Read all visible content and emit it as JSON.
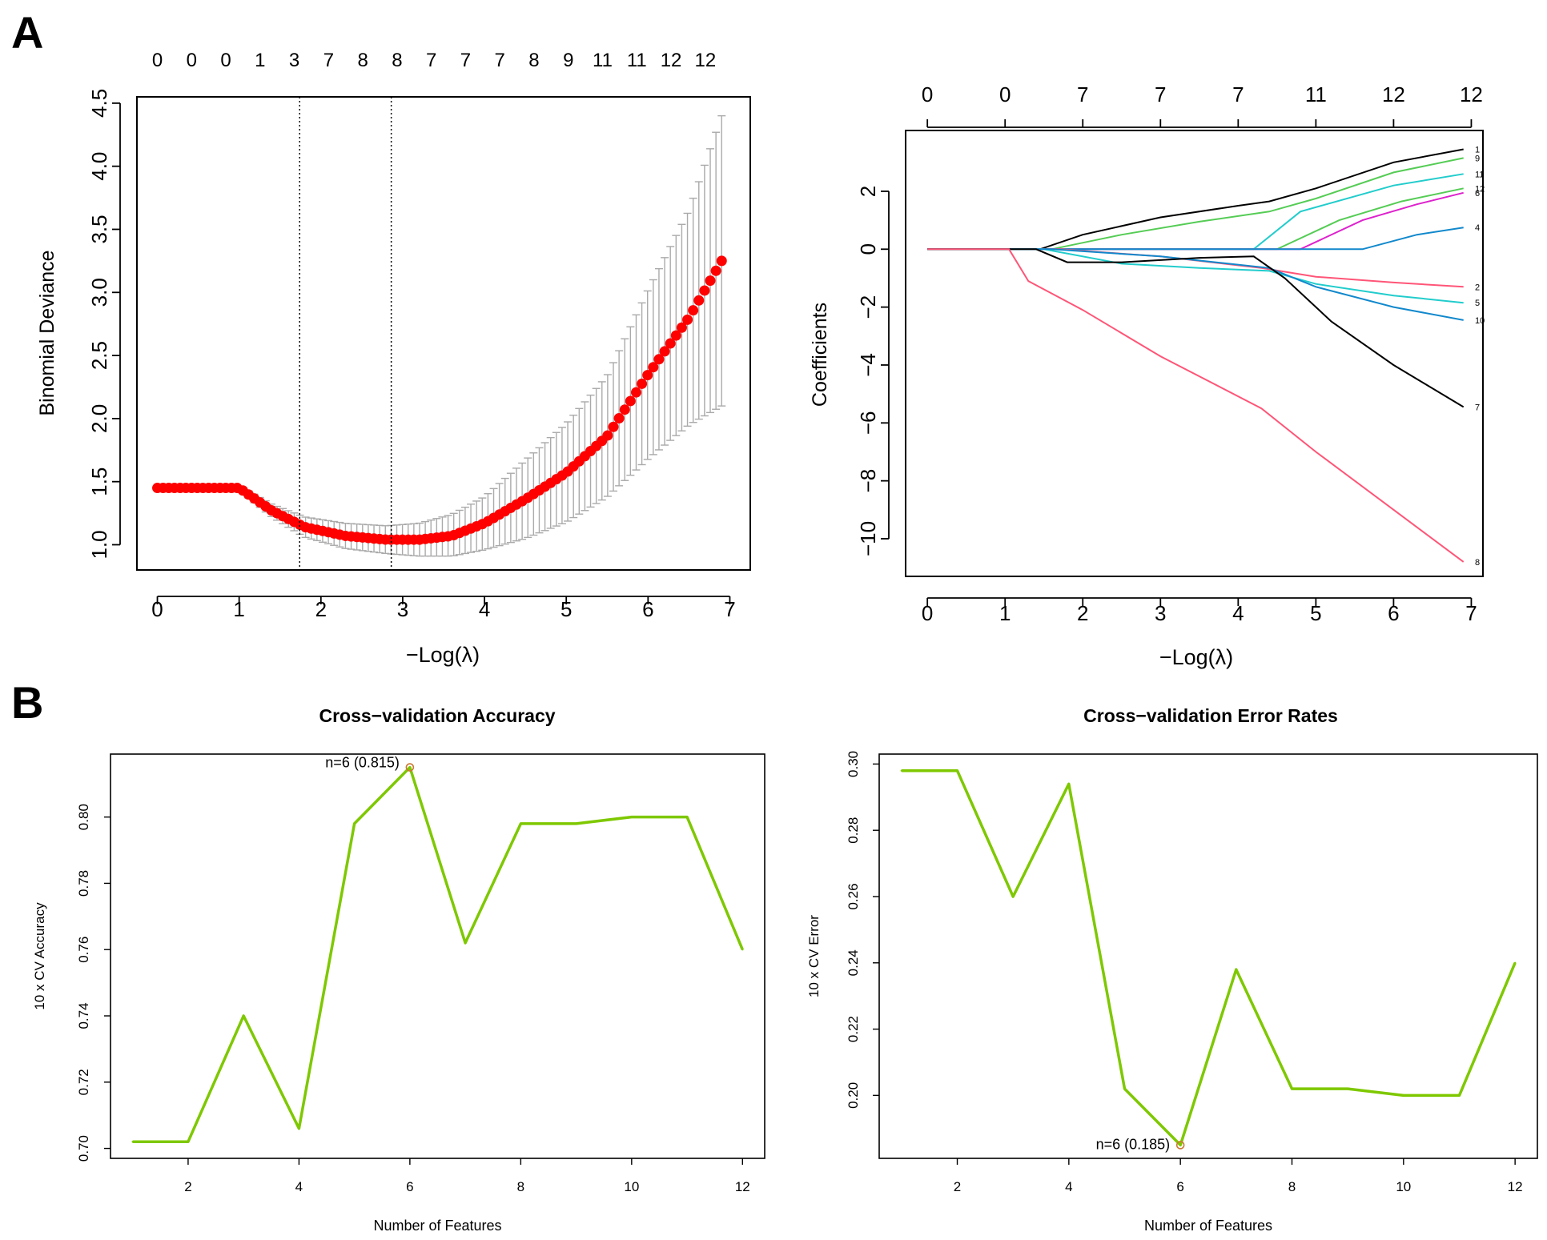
{
  "panel_labels": [
    "A",
    "B"
  ],
  "chart_data": [
    {
      "id": "cv_deviance",
      "type": "scatter",
      "title": "",
      "xlabel": "−Log(λ)",
      "ylabel": "Binomial Deviance",
      "xlim": [
        -0.25,
        7.25
      ],
      "ylim": [
        0.8,
        4.55
      ],
      "x_ticks": [
        "0",
        "1",
        "2",
        "3",
        "4",
        "5",
        "6",
        "7"
      ],
      "y_ticks": [
        "1.0",
        "1.5",
        "2.0",
        "2.5",
        "3.0",
        "3.5",
        "4.0",
        "4.5"
      ],
      "top_ticks": [
        "0",
        "0",
        "0",
        "1",
        "3",
        "7",
        "8",
        "8",
        "7",
        "7",
        "7",
        "8",
        "9",
        "11",
        "11",
        "12",
        "12"
      ],
      "lambda_min": 1.74,
      "lambda_1se": 2.86,
      "curve_keypoints": [
        [
          0,
          1.45
        ],
        [
          1.0,
          1.45
        ],
        [
          1.4,
          1.27
        ],
        [
          1.8,
          1.14
        ],
        [
          2.3,
          1.07
        ],
        [
          2.8,
          1.04
        ],
        [
          3.2,
          1.04
        ],
        [
          3.6,
          1.07
        ],
        [
          4.0,
          1.17
        ],
        [
          4.5,
          1.36
        ],
        [
          5.0,
          1.57
        ],
        [
          5.5,
          1.86
        ],
        [
          6.0,
          2.35
        ],
        [
          6.5,
          2.8
        ],
        [
          6.9,
          3.25
        ]
      ],
      "err_low_keypoints": [
        [
          0,
          1.44
        ],
        [
          1.0,
          1.43
        ],
        [
          1.4,
          1.22
        ],
        [
          1.8,
          1.06
        ],
        [
          2.3,
          0.97
        ],
        [
          2.8,
          0.93
        ],
        [
          3.2,
          0.91
        ],
        [
          3.6,
          0.91
        ],
        [
          4.0,
          0.96
        ],
        [
          4.5,
          1.05
        ],
        [
          5.0,
          1.18
        ],
        [
          5.5,
          1.38
        ],
        [
          6.0,
          1.68
        ],
        [
          6.5,
          1.95
        ],
        [
          6.9,
          2.1
        ]
      ],
      "err_high_keypoints": [
        [
          0,
          1.46
        ],
        [
          1.0,
          1.47
        ],
        [
          1.4,
          1.32
        ],
        [
          1.8,
          1.22
        ],
        [
          2.3,
          1.17
        ],
        [
          2.8,
          1.15
        ],
        [
          3.2,
          1.17
        ],
        [
          3.6,
          1.24
        ],
        [
          4.0,
          1.38
        ],
        [
          4.5,
          1.67
        ],
        [
          5.0,
          1.96
        ],
        [
          5.5,
          2.34
        ],
        [
          6.0,
          3.02
        ],
        [
          6.5,
          3.65
        ],
        [
          6.9,
          4.4
        ]
      ],
      "colors": {
        "curve": "#ff0000",
        "error_bars": "#aaaaaa"
      }
    },
    {
      "id": "coef_path",
      "type": "line",
      "title": "",
      "xlabel": "−Log(λ)",
      "ylabel": "Coefficients",
      "xlim": [
        -0.28,
        7.15
      ],
      "ylim": [
        -11.3,
        4.1
      ],
      "x_ticks": [
        "0",
        "1",
        "2",
        "3",
        "4",
        "5",
        "6",
        "7"
      ],
      "y_ticks": [
        "−10",
        "−8",
        "−6",
        "−4",
        "−2",
        "0",
        "2"
      ],
      "top_ticks": [
        "0",
        "0",
        "7",
        "7",
        "7",
        "11",
        "12",
        "12"
      ],
      "series": [
        {
          "name": "1",
          "color": "#000000",
          "points": [
            [
              0,
              0
            ],
            [
              1.45,
              0
            ],
            [
              2,
              0.5
            ],
            [
              3,
              1.1
            ],
            [
              4,
              1.5
            ],
            [
              4.4,
              1.65
            ],
            [
              5,
              2.1
            ],
            [
              6,
              3.0
            ],
            [
              6.9,
              3.45
            ]
          ]
        },
        {
          "name": "9",
          "color": "#55cc55",
          "points": [
            [
              0,
              0
            ],
            [
              1.6,
              0
            ],
            [
              2.5,
              0.5
            ],
            [
              3.5,
              0.95
            ],
            [
              4.4,
              1.3
            ],
            [
              5,
              1.75
            ],
            [
              6,
              2.65
            ],
            [
              6.9,
              3.15
            ]
          ]
        },
        {
          "name": "11",
          "color": "#22cccc",
          "points": [
            [
              0,
              0
            ],
            [
              4.2,
              0
            ],
            [
              4.8,
              1.3
            ],
            [
              6,
              2.2
            ],
            [
              6.9,
              2.6
            ]
          ]
        },
        {
          "name": "12",
          "color": "#55cc55",
          "points": [
            [
              0,
              0
            ],
            [
              4.5,
              0
            ],
            [
              5.3,
              1.0
            ],
            [
              6.1,
              1.65
            ],
            [
              6.9,
              2.1
            ]
          ]
        },
        {
          "name": "6",
          "color": "#dd22cc",
          "points": [
            [
              0,
              0
            ],
            [
              4.8,
              0
            ],
            [
              5.6,
              1.0
            ],
            [
              6.3,
              1.55
            ],
            [
              6.9,
              1.95
            ]
          ]
        },
        {
          "name": "4",
          "color": "#1188cc",
          "points": [
            [
              0,
              0
            ],
            [
              5.6,
              0
            ],
            [
              6.3,
              0.5
            ],
            [
              6.9,
              0.75
            ]
          ]
        },
        {
          "name": "2",
          "color": "#ff5577",
          "points": [
            [
              0,
              0
            ],
            [
              1.7,
              0
            ],
            [
              3,
              -0.25
            ],
            [
              4.3,
              -0.65
            ],
            [
              5,
              -0.95
            ],
            [
              6,
              -1.15
            ],
            [
              6.9,
              -1.3
            ]
          ]
        },
        {
          "name": "5",
          "color": "#22cccc",
          "points": [
            [
              0,
              0
            ],
            [
              1.5,
              0
            ],
            [
              2.5,
              -0.5
            ],
            [
              3.5,
              -0.65
            ],
            [
              4.4,
              -0.75
            ],
            [
              5,
              -1.2
            ],
            [
              6,
              -1.6
            ],
            [
              6.9,
              -1.85
            ]
          ]
        },
        {
          "name": "10",
          "color": "#1188cc",
          "points": [
            [
              0,
              0
            ],
            [
              1.6,
              0
            ],
            [
              3,
              -0.25
            ],
            [
              4.4,
              -0.65
            ],
            [
              5,
              -1.3
            ],
            [
              6,
              -2.0
            ],
            [
              6.9,
              -2.45
            ]
          ]
        },
        {
          "name": "7",
          "color": "#000000",
          "points": [
            [
              0,
              0
            ],
            [
              1.4,
              0
            ],
            [
              1.8,
              -0.45
            ],
            [
              2.5,
              -0.45
            ],
            [
              3.5,
              -0.3
            ],
            [
              4.2,
              -0.25
            ],
            [
              4.6,
              -1.0
            ],
            [
              5.2,
              -2.5
            ],
            [
              6,
              -4.0
            ],
            [
              6.9,
              -5.45
            ]
          ]
        },
        {
          "name": "8",
          "color": "#ff5577",
          "points": [
            [
              0,
              0
            ],
            [
              1.05,
              0
            ],
            [
              1.3,
              -1.1
            ],
            [
              2,
              -2.1
            ],
            [
              3,
              -3.7
            ],
            [
              4.3,
              -5.5
            ],
            [
              5,
              -7.0
            ],
            [
              6,
              -9.0
            ],
            [
              6.9,
              -10.8
            ]
          ]
        }
      ]
    },
    {
      "id": "cv_accuracy",
      "type": "line",
      "title": "Cross−validation Accuracy",
      "xlabel": "Number of Features",
      "ylabel": "10 x CV Accuracy",
      "xlim": [
        0.6,
        12.4
      ],
      "ylim": [
        0.697,
        0.819
      ],
      "x_ticks": [
        2,
        4,
        6,
        8,
        10,
        12
      ],
      "y_ticks": [
        "0.70",
        "0.72",
        "0.74",
        "0.76",
        "0.78",
        "0.80"
      ],
      "x": [
        1,
        2,
        3,
        4,
        5,
        6,
        7,
        8,
        9,
        10,
        11,
        12
      ],
      "values": [
        0.702,
        0.702,
        0.74,
        0.706,
        0.798,
        0.815,
        0.762,
        0.798,
        0.798,
        0.8,
        0.8,
        0.76
      ],
      "annotation": {
        "text": "n=6 (0.815)",
        "x": 6,
        "y": 0.815
      },
      "colors": {
        "line": "#7ec800",
        "annotation": "#ff0000"
      }
    },
    {
      "id": "cv_error",
      "type": "line",
      "title": "Cross−validation Error Rates",
      "xlabel": "Number of Features",
      "ylabel": "10 x CV Error",
      "xlim": [
        0.6,
        12.4
      ],
      "ylim": [
        0.181,
        0.303
      ],
      "x_ticks": [
        2,
        4,
        6,
        8,
        10,
        12
      ],
      "y_ticks": [
        "0.20",
        "0.22",
        "0.24",
        "0.26",
        "0.28",
        "0.30"
      ],
      "x": [
        1,
        2,
        3,
        4,
        5,
        6,
        7,
        8,
        9,
        10,
        11,
        12
      ],
      "values": [
        0.298,
        0.298,
        0.26,
        0.294,
        0.202,
        0.185,
        0.238,
        0.202,
        0.202,
        0.2,
        0.2,
        0.24
      ],
      "annotation": {
        "text": "n=6 (0.185)",
        "x": 6,
        "y": 0.185
      },
      "colors": {
        "line": "#7ec800",
        "annotation": "#ff0000"
      }
    }
  ]
}
